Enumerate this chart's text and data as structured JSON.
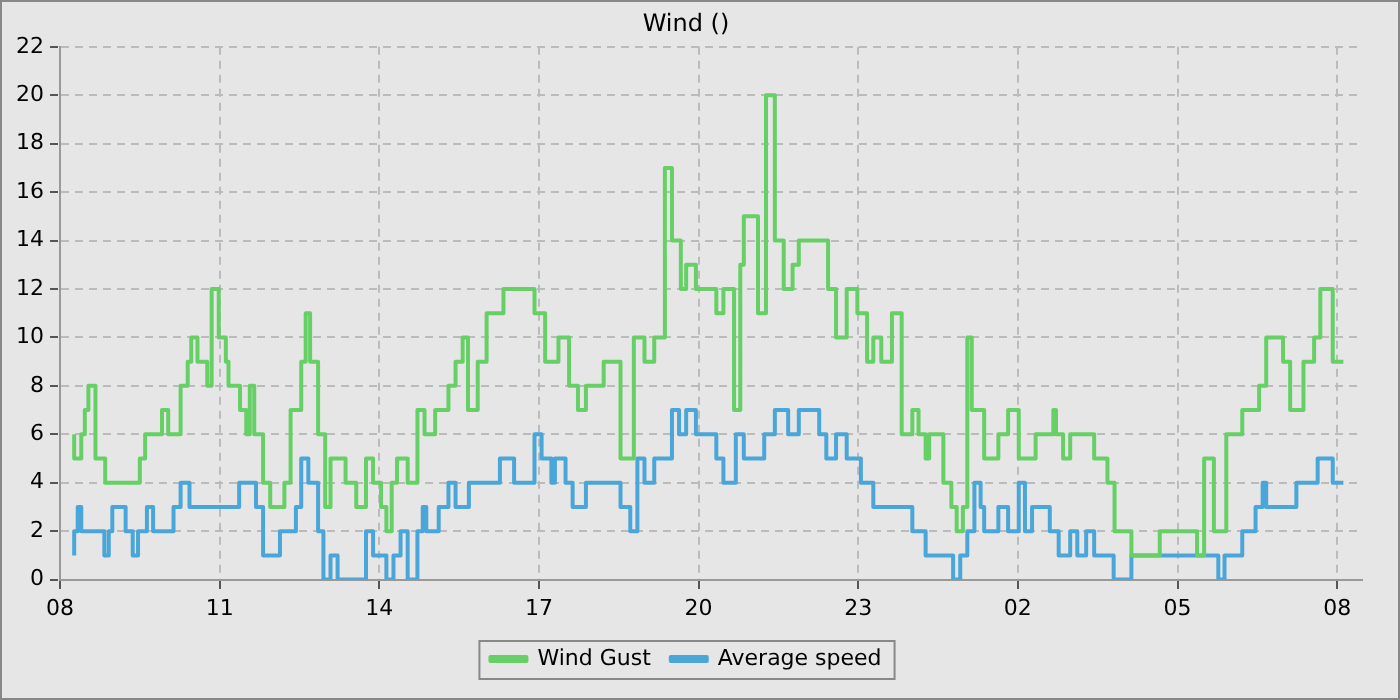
{
  "chart_data": {
    "type": "step",
    "title": "Wind ()",
    "xlim": [
      "--01-01T08:00",
      "--01-02T08:28"
    ],
    "xticks": [
      {
        "value": "--01-01T08:00",
        "label": "08"
      },
      {
        "value": "--01-01T11:00",
        "label": "11"
      },
      {
        "value": "--01-01T14:00",
        "label": "14"
      },
      {
        "value": "--01-01T17:00",
        "label": "17"
      },
      {
        "value": "--01-01T20:00",
        "label": "20"
      },
      {
        "value": "--01-01T23:00",
        "label": "23"
      },
      {
        "value": "--01-02T02:00",
        "label": "02"
      },
      {
        "value": "--01-02T05:00",
        "label": "05"
      },
      {
        "value": "--01-02T08:00",
        "label": "08"
      }
    ],
    "ylim": [
      0,
      22
    ],
    "yticks": [
      0,
      2,
      4,
      6,
      8,
      10,
      12,
      14,
      16,
      18,
      20,
      22
    ],
    "grid": true,
    "legend": "bottom",
    "marker": "none",
    "line_style": "solid",
    "series": [
      {
        "name": "Wind Gust",
        "color": "#66d066",
        "x": [
          "--01-01T08:16",
          "--01-01T08:24",
          "--01-01T08:28",
          "--01-01T08:32",
          "--01-01T08:40",
          "--01-01T08:51",
          "--01-01T09:30",
          "--01-01T09:36",
          "--01-01T09:55",
          "--01-01T10:02",
          "--01-01T10:16",
          "--01-01T10:24",
          "--01-01T10:28",
          "--01-01T10:35",
          "--01-01T10:46",
          "--01-01T10:51",
          "--01-01T10:59",
          "--01-01T11:07",
          "--01-01T11:10",
          "--01-01T11:23",
          "--01-01T11:30",
          "--01-01T11:34",
          "--01-01T11:39",
          "--01-01T11:49",
          "--01-01T11:57",
          "--01-01T12:13",
          "--01-01T12:20",
          "--01-01T12:32",
          "--01-01T12:37",
          "--01-01T12:42",
          "--01-01T12:51",
          "--01-01T12:59",
          "--01-01T13:05",
          "--01-01T13:22",
          "--01-01T13:34",
          "--01-01T13:45",
          "--01-01T13:53",
          "--01-01T14:02",
          "--01-01T14:08",
          "--01-01T14:14",
          "--01-01T14:20",
          "--01-01T14:32",
          "--01-01T14:43",
          "--01-01T14:51",
          "--01-01T15:03",
          "--01-01T15:18",
          "--01-01T15:26",
          "--01-01T15:34",
          "--01-01T15:40",
          "--01-01T15:51",
          "--01-01T16:01",
          "--01-01T16:20",
          "--01-01T16:55",
          "--01-01T17:07",
          "--01-01T17:22",
          "--01-01T17:34",
          "--01-01T17:44",
          "--01-01T17:53",
          "--01-01T18:13",
          "--01-01T18:32",
          "--01-01T18:47",
          "--01-01T18:59",
          "--01-01T19:10",
          "--01-01T19:22",
          "--01-01T19:30",
          "--01-01T19:40",
          "--01-01T19:46",
          "--01-01T19:57",
          "--01-01T20:20",
          "--01-01T20:28",
          "--01-01T20:40",
          "--01-01T20:47",
          "--01-01T20:51",
          "--01-01T21:07",
          "--01-01T21:16",
          "--01-01T21:26",
          "--01-01T21:36",
          "--01-01T21:46",
          "--01-01T21:53",
          "--01-01T22:26",
          "--01-01T22:35",
          "--01-01T22:47",
          "--01-01T22:59",
          "--01-01T23:10",
          "--01-01T23:17",
          "--01-01T23:26",
          "--01-01T23:38",
          "--01-01T23:49",
          "--01-02T00:01",
          "--01-02T00:08",
          "--01-02T00:16",
          "--01-02T00:20",
          "--01-02T00:36",
          "--01-02T00:45",
          "--01-02T00:51",
          "--01-02T00:58",
          "--01-02T01:03",
          "--01-02T01:08",
          "--01-02T01:22",
          "--01-02T01:38",
          "--01-02T01:49",
          "--01-02T02:01",
          "--01-02T02:20",
          "--01-02T02:40",
          "--01-02T02:43",
          "--01-02T02:51",
          "--01-02T02:59",
          "--01-02T03:26",
          "--01-02T03:41",
          "--01-02T03:49",
          "--01-02T04:08",
          "--01-02T04:40",
          "--01-02T05:22",
          "--01-02T05:30",
          "--01-02T05:41",
          "--01-02T05:55",
          "--01-02T06:13",
          "--01-02T06:32",
          "--01-02T06:40",
          "--01-02T06:59",
          "--01-02T07:07",
          "--01-02T07:22",
          "--01-02T07:34",
          "--01-02T07:41",
          "--01-02T07:55",
          "--01-02T08:05",
          "--01-02T08:07"
        ],
        "values": [
          6,
          5,
          6,
          7,
          8,
          5,
          4,
          5,
          6,
          7,
          6,
          8,
          9,
          10,
          9,
          8,
          12,
          10,
          9,
          8,
          7,
          6,
          8,
          6,
          4,
          3,
          4,
          7,
          9,
          11,
          9,
          6,
          3,
          5,
          4,
          3,
          5,
          4,
          3,
          2,
          4,
          5,
          4,
          7,
          6,
          7,
          8,
          9,
          10,
          7,
          9,
          11,
          12,
          11,
          9,
          10,
          8,
          7,
          8,
          9,
          5,
          10,
          9,
          10,
          17,
          14,
          12,
          13,
          12,
          11,
          12,
          7,
          13,
          15,
          11,
          20,
          14,
          12,
          13,
          14,
          12,
          10,
          12,
          11,
          9,
          10,
          9,
          11,
          6,
          7,
          6,
          5,
          6,
          4,
          3,
          2,
          3,
          10,
          7,
          5,
          6,
          7,
          5,
          6,
          7,
          6,
          5,
          6,
          5,
          4,
          2,
          1,
          2,
          1,
          5,
          2,
          6,
          7,
          8,
          10,
          9,
          7,
          9,
          10,
          12,
          9,
          9
        ]
      },
      {
        "name": "Average speed",
        "color": "#4aa6d8",
        "x": [
          "--01-01T08:16",
          "--01-01T08:20",
          "--01-01T08:24",
          "--01-01T08:50",
          "--01-01T08:55",
          "--01-01T08:59",
          "--01-01T09:14",
          "--01-01T09:22",
          "--01-01T09:28",
          "--01-01T09:38",
          "--01-01T09:45",
          "--01-01T10:08",
          "--01-01T10:16",
          "--01-01T10:26",
          "--01-01T11:22",
          "--01-01T11:41",
          "--01-01T11:49",
          "--01-01T12:08",
          "--01-01T12:26",
          "--01-01T12:32",
          "--01-01T12:40",
          "--01-01T12:51",
          "--01-01T12:57",
          "--01-01T13:05",
          "--01-01T13:13",
          "--01-01T13:45",
          "--01-01T13:53",
          "--01-01T14:08",
          "--01-01T14:16",
          "--01-01T14:24",
          "--01-01T14:32",
          "--01-01T14:43",
          "--01-01T14:49",
          "--01-01T14:53",
          "--01-01T15:07",
          "--01-01T15:18",
          "--01-01T15:26",
          "--01-01T15:41",
          "--01-01T16:16",
          "--01-01T16:32",
          "--01-01T16:55",
          "--01-01T17:03",
          "--01-01T17:14",
          "--01-01T17:18",
          "--01-01T17:30",
          "--01-01T17:38",
          "--01-01T17:53",
          "--01-01T18:32",
          "--01-01T18:43",
          "--01-01T18:51",
          "--01-01T18:59",
          "--01-01T19:10",
          "--01-01T19:30",
          "--01-01T19:38",
          "--01-01T19:46",
          "--01-01T19:57",
          "--01-01T20:20",
          "--01-01T20:28",
          "--01-01T20:42",
          "--01-01T20:51",
          "--01-01T21:14",
          "--01-01T21:26",
          "--01-01T21:41",
          "--01-01T21:53",
          "--01-01T22:16",
          "--01-01T22:24",
          "--01-01T22:35",
          "--01-01T22:47",
          "--01-01T23:03",
          "--01-01T23:17",
          "--01-02T00:01",
          "--01-02T00:16",
          "--01-02T00:47",
          "--01-02T00:55",
          "--01-02T01:03",
          "--01-02T01:11",
          "--01-02T01:18",
          "--01-02T01:22",
          "--01-02T01:38",
          "--01-02T01:49",
          "--01-02T02:01",
          "--01-02T02:08",
          "--01-02T02:16",
          "--01-02T02:36",
          "--01-02T02:46",
          "--01-02T02:59",
          "--01-02T03:07",
          "--01-02T03:17",
          "--01-02T03:26",
          "--01-02T03:48",
          "--01-02T04:08",
          "--01-02T05:46",
          "--01-02T05:53",
          "--01-02T06:13",
          "--01-02T06:28",
          "--01-02T06:36",
          "--01-02T06:40",
          "--01-02T07:14",
          "--01-02T07:38",
          "--01-02T07:55",
          "--01-02T08:03",
          "--01-02T08:07"
        ],
        "values": [
          1,
          2,
          3,
          2,
          1,
          2,
          3,
          2,
          1,
          2,
          3,
          2,
          3,
          4,
          3,
          4,
          3,
          1,
          2,
          3,
          5,
          4,
          2,
          0,
          1,
          0,
          2,
          1,
          0,
          1,
          2,
          0,
          2,
          3,
          2,
          3,
          4,
          3,
          4,
          5,
          4,
          6,
          5,
          4,
          5,
          4,
          3,
          4,
          3,
          2,
          5,
          4,
          5,
          7,
          6,
          7,
          6,
          5,
          4,
          6,
          5,
          6,
          7,
          6,
          7,
          6,
          5,
          6,
          5,
          4,
          3,
          2,
          1,
          0,
          1,
          2,
          4,
          3,
          2,
          3,
          2,
          4,
          2,
          3,
          2,
          1,
          2,
          1,
          2,
          1,
          0,
          1,
          0,
          1,
          2,
          3,
          4,
          3,
          4,
          5,
          4,
          4
        ]
      }
    ]
  }
}
